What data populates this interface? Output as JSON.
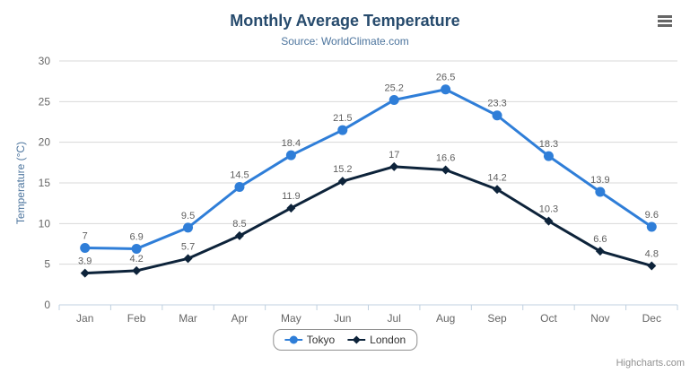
{
  "chart_data": {
    "type": "line",
    "title": "Monthly Average Temperature",
    "subtitle": "Source: WorldClimate.com",
    "xlabel": "",
    "ylabel": "Temperature (°C)",
    "categories": [
      "Jan",
      "Feb",
      "Mar",
      "Apr",
      "May",
      "Jun",
      "Jul",
      "Aug",
      "Sep",
      "Oct",
      "Nov",
      "Dec"
    ],
    "series": [
      {
        "name": "Tokyo",
        "color": "#2f7ed8",
        "marker": "circle",
        "values": [
          7,
          6.9,
          9.5,
          14.5,
          18.4,
          21.5,
          25.2,
          26.5,
          23.3,
          18.3,
          13.9,
          9.6
        ]
      },
      {
        "name": "London",
        "color": "#0d233a",
        "marker": "diamond",
        "values": [
          3.9,
          4.2,
          5.7,
          8.5,
          11.9,
          15.2,
          17,
          16.6,
          14.2,
          10.3,
          6.6,
          4.8
        ]
      }
    ],
    "ylim": [
      0,
      30
    ],
    "yticks": [
      0,
      5,
      10,
      15,
      20,
      25,
      30
    ],
    "grid": true,
    "legend_position": "bottom-center"
  },
  "credits": "Highcharts.com",
  "context_menu_icon": "hamburger",
  "colors": {
    "title": "#274b6d",
    "subtitle": "#4d759e",
    "axis_label": "#666666",
    "data_label": "#606060",
    "grid": "#d8d8d8",
    "axis_line": "#c0d0e0",
    "legend_text": "#333333",
    "legend_border": "#909090",
    "credits": "#909090",
    "menu_icon": "#666666"
  }
}
